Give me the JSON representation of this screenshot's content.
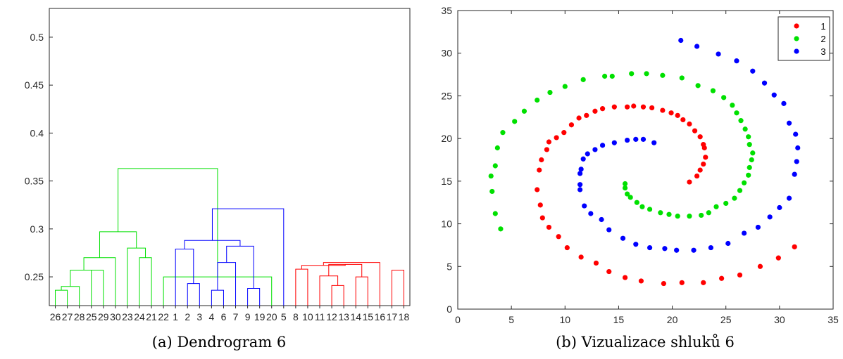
{
  "captions": {
    "a": "(a) Dendrogram 6",
    "b": "(b) Vizualizace shluků 6"
  },
  "colors": {
    "green": "#00e000",
    "blue": "#0000ff",
    "red": "#ff0000",
    "black": "#000000"
  },
  "chart_data": [
    {
      "type": "dendrogram",
      "ylim": [
        0.22,
        0.53
      ],
      "yticks": [
        0.25,
        0.3,
        0.35,
        0.4,
        0.45,
        0.5
      ],
      "ytick_labels": [
        "0.25",
        "0.3",
        "0.35",
        "0.4",
        "0.45",
        "0.5"
      ],
      "leaf_order": [
        "26",
        "27",
        "28",
        "25",
        "29",
        "30",
        "23",
        "24",
        "21",
        "22",
        "1",
        "2",
        "3",
        "4",
        "6",
        "7",
        "9",
        "19",
        "20",
        "5",
        "8",
        "10",
        "11",
        "12",
        "13",
        "14",
        "15",
        "16",
        "17",
        "18"
      ],
      "merges": [
        {
          "a": 26,
          "b": 27,
          "h": 0.236,
          "color": "green"
        },
        {
          "a": 28,
          "b": 101,
          "h": 0.24,
          "color": "green"
        },
        {
          "a": 25,
          "b": 29,
          "h": 0.257,
          "color": "green"
        },
        {
          "a": 102,
          "b": 103,
          "h": 0.257,
          "color": "green"
        },
        {
          "a": 30,
          "b": 104,
          "h": 0.27,
          "color": "green"
        },
        {
          "a": 24,
          "b": 21,
          "h": 0.27,
          "color": "green"
        },
        {
          "a": 23,
          "b": 106,
          "h": 0.28,
          "color": "green"
        },
        {
          "a": 105,
          "b": 107,
          "h": 0.297,
          "color": "green"
        },
        {
          "a": 22,
          "b": 20,
          "h": 0.25,
          "color": "green"
        },
        {
          "a": 108,
          "b": 109,
          "h": 0.363,
          "color": "green"
        },
        {
          "a": 2,
          "b": 3,
          "h": 0.243,
          "color": "blue"
        },
        {
          "a": 1,
          "b": 111,
          "h": 0.279,
          "color": "blue"
        },
        {
          "a": 4,
          "b": 6,
          "h": 0.236,
          "color": "blue"
        },
        {
          "a": 7,
          "b": 113,
          "h": 0.265,
          "color": "blue"
        },
        {
          "a": 9,
          "b": 19,
          "h": 0.238,
          "color": "blue"
        },
        {
          "a": 114,
          "b": 115,
          "h": 0.282,
          "color": "blue"
        },
        {
          "a": 112,
          "b": 116,
          "h": 0.288,
          "color": "blue"
        },
        {
          "a": 117,
          "b": 5,
          "h": 0.321,
          "color": "blue"
        },
        {
          "a": 8,
          "b": 10,
          "h": 0.258,
          "color": "red"
        },
        {
          "a": 12,
          "b": 13,
          "h": 0.241,
          "color": "red"
        },
        {
          "a": 11,
          "b": 120,
          "h": 0.251,
          "color": "red"
        },
        {
          "a": 14,
          "b": 15,
          "h": 0.25,
          "color": "red"
        },
        {
          "a": 121,
          "b": 122,
          "h": 0.263,
          "color": "red"
        },
        {
          "a": 119,
          "b": 123,
          "h": 0.262,
          "color": "red"
        },
        {
          "a": 16,
          "b": 124,
          "h": 0.265,
          "color": "red"
        },
        {
          "a": 17,
          "b": 18,
          "h": 0.257,
          "color": "red"
        },
        {
          "a": 126,
          "b": 127,
          "h": 0.295,
          "color": "red"
        },
        {
          "a": 125,
          "b": 128,
          "h": 0.375,
          "color": "red"
        },
        {
          "a": 118,
          "b": 129,
          "h": 0.48,
          "color": "black"
        },
        {
          "a": 110,
          "b": 130,
          "h": 0.513,
          "color": "black"
        }
      ]
    },
    {
      "type": "scatter",
      "xlim": [
        0,
        35
      ],
      "ylim": [
        0,
        35
      ],
      "xticks": [
        "0",
        "5",
        "10",
        "15",
        "20",
        "25",
        "30",
        "35"
      ],
      "yticks": [
        "0",
        "5",
        "10",
        "15",
        "20",
        "25",
        "30",
        "35"
      ],
      "legend": "top-right",
      "series": [
        {
          "name": "1",
          "color": "#ff0000",
          "points": [
            [
              21.6,
              14.9
            ],
            [
              22.3,
              15.6
            ],
            [
              22.6,
              16.3
            ],
            [
              22.9,
              17.0
            ],
            [
              23.1,
              17.8
            ],
            [
              23.0,
              18.9
            ],
            [
              22.9,
              19.3
            ],
            [
              22.6,
              20.2
            ],
            [
              22.1,
              20.9
            ],
            [
              21.6,
              21.7
            ],
            [
              21.0,
              22.2
            ],
            [
              20.5,
              22.7
            ],
            [
              19.9,
              23.0
            ],
            [
              19.1,
              23.3
            ],
            [
              18.1,
              23.6
            ],
            [
              17.3,
              23.7
            ],
            [
              16.4,
              23.8
            ],
            [
              15.8,
              23.7
            ],
            [
              14.6,
              23.7
            ],
            [
              13.5,
              23.5
            ],
            [
              12.8,
              23.2
            ],
            [
              12.0,
              22.7
            ],
            [
              11.3,
              22.4
            ],
            [
              10.6,
              21.6
            ],
            [
              9.9,
              20.7
            ],
            [
              9.2,
              20.1
            ],
            [
              8.5,
              19.6
            ],
            [
              8.3,
              18.7
            ],
            [
              7.8,
              17.5
            ],
            [
              7.6,
              16.3
            ],
            [
              7.4,
              14.0
            ],
            [
              7.7,
              12.2
            ],
            [
              7.9,
              10.7
            ],
            [
              8.5,
              9.6
            ],
            [
              9.4,
              8.5
            ],
            [
              10.2,
              7.2
            ],
            [
              11.5,
              6.1
            ],
            [
              12.9,
              5.4
            ],
            [
              14.1,
              4.4
            ],
            [
              15.6,
              3.7
            ],
            [
              17.1,
              3.3
            ],
            [
              19.2,
              3.0
            ],
            [
              20.9,
              3.1
            ],
            [
              22.9,
              3.1
            ],
            [
              24.6,
              3.6
            ],
            [
              26.3,
              4.0
            ],
            [
              28.2,
              5.0
            ],
            [
              29.9,
              6.0
            ],
            [
              31.4,
              7.3
            ]
          ]
        },
        {
          "name": "2",
          "color": "#00e000",
          "points": [
            [
              15.6,
              14.7
            ],
            [
              15.6,
              14.2
            ],
            [
              15.8,
              13.5
            ],
            [
              16.1,
              13.1
            ],
            [
              16.7,
              12.5
            ],
            [
              17.2,
              12.0
            ],
            [
              17.9,
              11.7
            ],
            [
              18.9,
              11.3
            ],
            [
              19.7,
              11.1
            ],
            [
              20.5,
              10.9
            ],
            [
              21.6,
              10.9
            ],
            [
              22.7,
              11.0
            ],
            [
              23.4,
              11.3
            ],
            [
              24.1,
              12.0
            ],
            [
              25.0,
              12.4
            ],
            [
              25.8,
              13.0
            ],
            [
              26.3,
              13.9
            ],
            [
              26.7,
              14.8
            ],
            [
              27.1,
              15.7
            ],
            [
              27.2,
              16.6
            ],
            [
              27.4,
              17.5
            ],
            [
              27.5,
              18.3
            ],
            [
              27.2,
              19.3
            ],
            [
              27.1,
              20.2
            ],
            [
              26.8,
              21.1
            ],
            [
              26.4,
              22.1
            ],
            [
              26.0,
              23.0
            ],
            [
              25.6,
              23.9
            ],
            [
              24.8,
              24.8
            ],
            [
              23.8,
              25.6
            ],
            [
              22.4,
              26.2
            ],
            [
              20.9,
              27.1
            ],
            [
              19.1,
              27.4
            ],
            [
              17.6,
              27.6
            ],
            [
              16.2,
              27.6
            ],
            [
              14.4,
              27.3
            ],
            [
              13.7,
              27.3
            ],
            [
              11.7,
              26.9
            ],
            [
              10.0,
              26.1
            ],
            [
              8.6,
              25.4
            ],
            [
              7.4,
              24.5
            ],
            [
              6.2,
              23.2
            ],
            [
              5.3,
              22.0
            ],
            [
              4.2,
              20.7
            ],
            [
              3.7,
              18.9
            ],
            [
              3.5,
              16.8
            ],
            [
              3.1,
              15.6
            ],
            [
              3.2,
              13.8
            ],
            [
              3.5,
              11.2
            ],
            [
              4.0,
              9.4
            ]
          ]
        },
        {
          "name": "3",
          "color": "#0000ff",
          "points": [
            [
              18.3,
              19.5
            ],
            [
              17.3,
              19.9
            ],
            [
              16.6,
              19.9
            ],
            [
              15.8,
              19.8
            ],
            [
              14.6,
              19.5
            ],
            [
              13.5,
              19.2
            ],
            [
              12.8,
              18.7
            ],
            [
              12.1,
              18.2
            ],
            [
              11.7,
              17.6
            ],
            [
              11.5,
              16.4
            ],
            [
              11.4,
              15.9
            ],
            [
              11.4,
              14.6
            ],
            [
              11.4,
              14.0
            ],
            [
              11.8,
              12.1
            ],
            [
              12.4,
              11.2
            ],
            [
              13.4,
              10.5
            ],
            [
              14.1,
              9.3
            ],
            [
              15.4,
              8.3
            ],
            [
              16.6,
              7.6
            ],
            [
              17.9,
              7.2
            ],
            [
              19.3,
              7.1
            ],
            [
              20.4,
              6.9
            ],
            [
              22.0,
              6.9
            ],
            [
              23.6,
              7.2
            ],
            [
              25.2,
              7.7
            ],
            [
              26.7,
              8.9
            ],
            [
              28.0,
              9.6
            ],
            [
              29.1,
              10.8
            ],
            [
              30.0,
              11.9
            ],
            [
              30.9,
              13.0
            ],
            [
              31.4,
              15.8
            ],
            [
              31.6,
              17.3
            ],
            [
              31.7,
              18.9
            ],
            [
              31.5,
              20.5
            ],
            [
              30.9,
              21.8
            ],
            [
              30.4,
              24.1
            ],
            [
              29.5,
              25.1
            ],
            [
              28.6,
              26.5
            ],
            [
              27.5,
              27.9
            ],
            [
              26.0,
              29.1
            ],
            [
              24.3,
              29.9
            ],
            [
              22.3,
              30.8
            ],
            [
              20.8,
              31.5
            ]
          ]
        }
      ]
    }
  ]
}
